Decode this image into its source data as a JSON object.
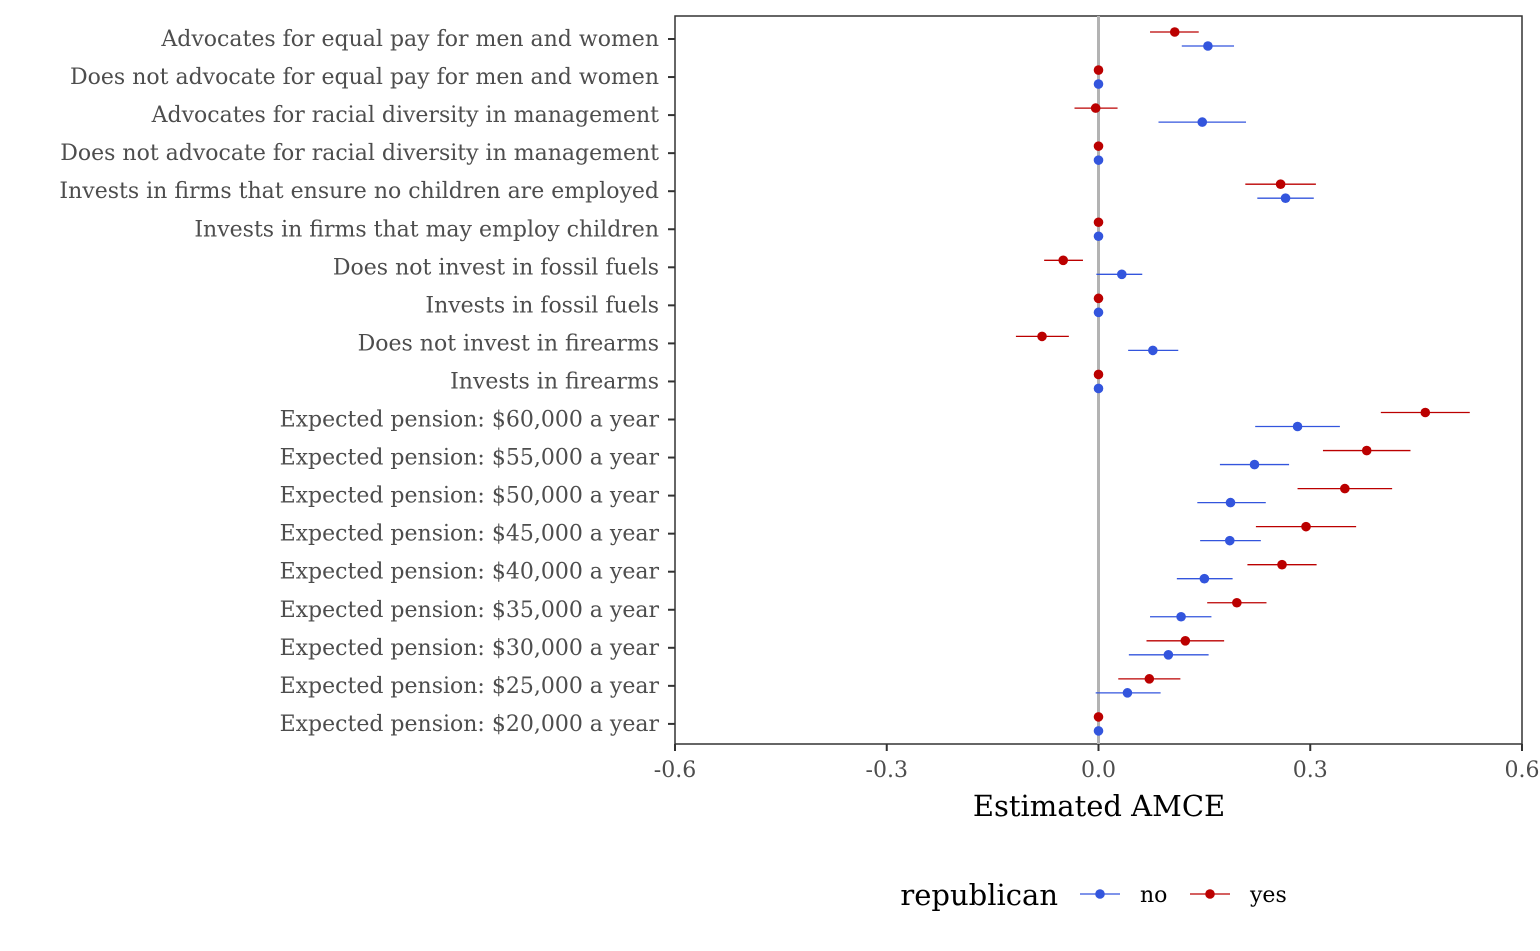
{
  "chart_data": {
    "type": "scatter",
    "subtype": "dot-whisker",
    "xlabel": "Estimated AMCE",
    "xlim": [
      -0.6,
      0.6
    ],
    "x_ticks": [
      "-0.6",
      "-0.3",
      "0.0",
      "0.3",
      "0.6"
    ],
    "x_tick_values": [
      -0.6,
      -0.3,
      0.0,
      0.3,
      0.6
    ],
    "reference_line": 0.0,
    "grid": false,
    "categories": [
      "Advocates for equal pay for men and women",
      "Does not advocate for equal pay for men and women",
      "Advocates for racial diversity in management",
      "Does not advocate for racial diversity in management",
      "Invests in firms that ensure no children are employed",
      "Invests in firms that may employ children",
      "Does not invest in fossil fuels",
      "Invests in fossil fuels",
      "Does not invest in firearms",
      "Invests in firearms",
      "Expected pension: $60,000 a year",
      "Expected pension: $55,000 a year",
      "Expected pension: $50,000 a year",
      "Expected pension: $45,000 a year",
      "Expected pension: $40,000 a year",
      "Expected pension: $35,000 a year",
      "Expected pension: $30,000 a year",
      "Expected pension: $25,000 a year",
      "Expected pension: $20,000 a year"
    ],
    "legend": {
      "title": "republican",
      "position": "bottom"
    },
    "series": [
      {
        "name": "no",
        "color": "#3355dd",
        "values": [
          0.155,
          0,
          0.147,
          0,
          0.265,
          0,
          0.033,
          0,
          0.077,
          0,
          0.282,
          0.221,
          0.187,
          0.186,
          0.15,
          0.117,
          0.099,
          0.041,
          0
        ],
        "lower": [
          0.118,
          0,
          0.085,
          0,
          0.225,
          0,
          -0.003,
          0,
          0.042,
          0,
          0.222,
          0.172,
          0.14,
          0.144,
          0.111,
          0.073,
          0.043,
          -0.004,
          0
        ],
        "upper": [
          0.192,
          0,
          0.209,
          0,
          0.305,
          0,
          0.062,
          0,
          0.113,
          0,
          0.342,
          0.27,
          0.237,
          0.23,
          0.19,
          0.16,
          0.156,
          0.088,
          0
        ]
      },
      {
        "name": "yes",
        "color": "#bb0000",
        "values": [
          0.108,
          0,
          -0.004,
          0,
          0.258,
          0,
          -0.05,
          0,
          -0.08,
          0,
          0.463,
          0.38,
          0.349,
          0.294,
          0.26,
          0.196,
          0.123,
          0.072,
          0
        ],
        "lower": [
          0.073,
          0,
          -0.034,
          0,
          0.208,
          0,
          -0.077,
          0,
          -0.117,
          0,
          0.4,
          0.318,
          0.282,
          0.223,
          0.211,
          0.154,
          0.068,
          0.028,
          0
        ],
        "upper": [
          0.142,
          0,
          0.027,
          0,
          0.308,
          0,
          -0.022,
          0,
          -0.042,
          0,
          0.526,
          0.442,
          0.416,
          0.365,
          0.309,
          0.238,
          0.178,
          0.116,
          0
        ]
      }
    ]
  }
}
